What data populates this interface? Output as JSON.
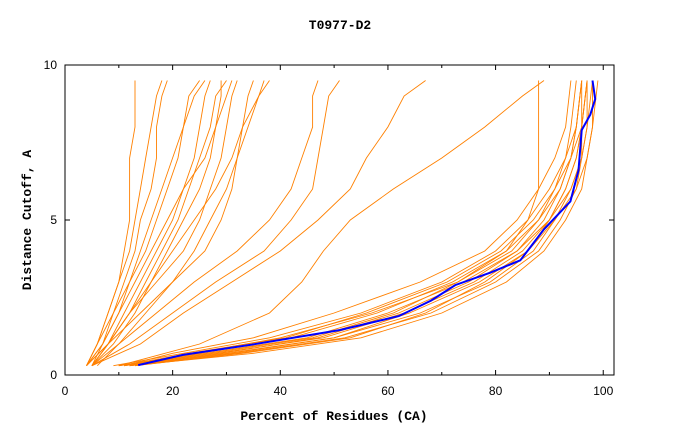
{
  "chart_data": {
    "type": "line",
    "title": "T0977-D2",
    "xlabel": "Percent of Residues (CA)",
    "ylabel": "Distance Cutoff, A",
    "xlim": [
      0,
      102
    ],
    "ylim": [
      0,
      10
    ],
    "xticks": [
      "0",
      "20",
      "40",
      "60",
      "80",
      "100"
    ],
    "yticks": [
      "0",
      "5",
      "10"
    ],
    "grid": false,
    "colors": {
      "models": "#ff8000",
      "highlight": "#0000ff"
    },
    "models_y_main": [
      0.3,
      0.7,
      1.2,
      2,
      3,
      4,
      5,
      6,
      7,
      8,
      9.5
    ],
    "models_y_other": [
      0.3,
      1,
      2,
      3,
      4,
      5,
      6,
      7,
      8,
      9,
      9.5
    ],
    "models_main": [
      [
        10,
        25,
        42,
        58,
        72,
        82,
        88,
        92,
        94,
        95,
        96
      ],
      [
        11,
        28,
        48,
        63,
        76,
        85,
        90,
        93,
        95,
        96,
        97
      ],
      [
        12,
        30,
        50,
        66,
        79,
        87,
        91,
        94,
        96,
        97,
        98
      ],
      [
        9,
        22,
        38,
        55,
        70,
        80,
        86,
        90,
        93,
        94,
        95
      ],
      [
        13,
        32,
        52,
        68,
        80,
        88,
        92,
        95,
        97,
        98,
        99
      ],
      [
        10,
        26,
        45,
        60,
        74,
        84,
        89,
        92,
        94,
        95,
        96
      ],
      [
        12,
        35,
        55,
        70,
        82,
        89,
        93,
        96,
        97,
        98,
        98
      ],
      [
        11,
        20,
        35,
        50,
        66,
        78,
        84,
        88,
        91,
        93,
        94
      ],
      [
        10,
        24,
        40,
        57,
        73,
        83,
        88,
        91,
        93,
        95,
        96
      ],
      [
        12,
        29,
        47,
        62,
        75,
        84,
        90,
        94,
        96,
        96,
        97
      ],
      [
        11,
        27,
        46,
        61,
        73,
        82,
        86,
        88,
        88,
        88,
        88
      ],
      [
        12,
        31,
        50,
        64,
        77,
        86,
        91,
        95,
        96,
        97,
        97
      ],
      [
        11,
        23,
        41,
        56,
        71,
        81,
        87,
        91,
        94,
        96,
        97
      ],
      [
        13,
        33,
        53,
        67,
        78,
        86,
        90,
        93,
        95,
        96,
        96
      ]
    ],
    "models_other": [
      [
        10,
        25,
        38,
        44,
        48,
        53,
        61,
        70,
        78,
        85,
        89
      ],
      [
        5,
        14,
        22,
        31,
        40,
        47,
        53,
        56,
        60,
        63,
        67
      ],
      [
        5,
        12,
        20,
        28,
        37,
        42,
        46,
        47,
        48,
        49,
        51
      ],
      [
        5,
        10,
        17,
        24,
        32,
        38,
        42,
        44,
        46,
        46,
        47
      ],
      [
        4,
        8,
        14,
        20,
        26,
        29,
        31,
        32,
        33,
        34,
        35
      ],
      [
        4,
        8,
        12,
        17,
        22,
        25,
        27,
        29,
        30,
        31,
        32
      ],
      [
        4,
        6,
        8,
        10,
        11,
        12,
        12,
        12,
        13,
        13,
        13
      ],
      [
        5,
        7,
        9,
        11,
        13,
        14,
        16,
        17,
        17,
        18,
        19
      ],
      [
        4,
        7,
        10,
        12,
        15,
        17,
        19,
        21,
        22,
        23,
        25
      ],
      [
        5,
        8,
        11,
        14,
        17,
        20,
        22,
        24,
        25,
        26,
        27
      ],
      [
        4,
        6,
        9,
        12,
        14,
        16,
        18,
        20,
        22,
        24,
        26
      ],
      [
        5,
        8,
        12,
        15,
        18,
        21,
        23,
        25,
        27,
        28,
        30
      ],
      [
        4,
        7,
        10,
        13,
        16,
        19,
        22,
        26,
        28,
        30,
        31
      ],
      [
        5,
        9,
        13,
        16,
        19,
        22,
        25,
        27,
        28,
        29,
        29
      ],
      [
        4,
        6,
        8,
        10,
        12,
        13,
        14,
        15,
        16,
        17,
        18
      ],
      [
        6,
        10,
        15,
        20,
        24,
        27,
        30,
        32,
        34,
        36,
        37
      ],
      [
        5,
        8,
        12,
        16,
        20,
        24,
        28,
        31,
        33,
        36,
        38
      ]
    ],
    "highlight": {
      "x": [
        13.6,
        21.9,
        34.4,
        51,
        62,
        68,
        72.5,
        79,
        84.6,
        89,
        93.9,
        95.4,
        96,
        97.6,
        98.5,
        98
      ],
      "y": [
        0.32,
        0.65,
        0.97,
        1.45,
        1.9,
        2.4,
        2.9,
        3.3,
        3.7,
        4.7,
        5.6,
        6.6,
        7.9,
        8.4,
        8.9,
        9.5
      ]
    }
  }
}
